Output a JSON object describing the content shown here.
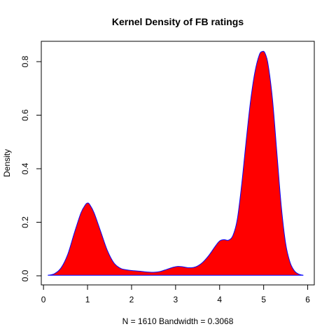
{
  "chart_data": {
    "type": "area",
    "title": "Kernel Density of FB ratings",
    "xlabel": "N = 1610   Bandwidth = 0.3068",
    "ylabel": "Density",
    "xlim": [
      -0.05,
      6.15
    ],
    "ylim": [
      -0.034,
      0.876
    ],
    "x_ticks": [
      {
        "value": 0,
        "label": "0"
      },
      {
        "value": 1,
        "label": "1"
      },
      {
        "value": 2,
        "label": "2"
      },
      {
        "value": 3,
        "label": "3"
      },
      {
        "value": 4,
        "label": "4"
      },
      {
        "value": 5,
        "label": "5"
      },
      {
        "value": 6,
        "label": "6"
      }
    ],
    "y_ticks": [
      {
        "value": 0.0,
        "label": "0.0"
      },
      {
        "value": 0.2,
        "label": "0.2"
      },
      {
        "value": 0.4,
        "label": "0.4"
      },
      {
        "value": 0.6,
        "label": "0.6"
      },
      {
        "value": 0.8,
        "label": "0.8"
      }
    ],
    "fill_color": "#ff0000",
    "line_color": "#0000ff",
    "grid": false,
    "series": [
      {
        "x": [
          0.1,
          0.25,
          0.4,
          0.55,
          0.7,
          0.85,
          0.95,
          1.0,
          1.05,
          1.15,
          1.3,
          1.45,
          1.6,
          1.75,
          1.9,
          2.05,
          2.2,
          2.35,
          2.5,
          2.65,
          2.8,
          2.95,
          3.05,
          3.15,
          3.3,
          3.45,
          3.6,
          3.75,
          3.9,
          4.0,
          4.1,
          4.2,
          4.3,
          4.4,
          4.5,
          4.6,
          4.7,
          4.8,
          4.9,
          4.97,
          5.03,
          5.1,
          5.2,
          5.3,
          5.4,
          5.5,
          5.6,
          5.7,
          5.8,
          5.9
        ],
        "y": [
          0.002,
          0.008,
          0.03,
          0.08,
          0.16,
          0.235,
          0.265,
          0.272,
          0.266,
          0.235,
          0.165,
          0.095,
          0.048,
          0.028,
          0.022,
          0.019,
          0.017,
          0.014,
          0.013,
          0.016,
          0.024,
          0.032,
          0.035,
          0.034,
          0.03,
          0.033,
          0.048,
          0.075,
          0.11,
          0.13,
          0.135,
          0.133,
          0.15,
          0.21,
          0.34,
          0.5,
          0.65,
          0.76,
          0.825,
          0.838,
          0.832,
          0.79,
          0.66,
          0.46,
          0.26,
          0.12,
          0.05,
          0.018,
          0.006,
          0.002
        ]
      }
    ]
  }
}
